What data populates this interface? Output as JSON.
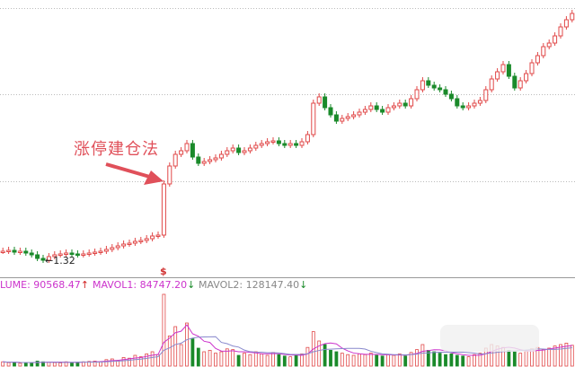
{
  "chart_data": {
    "type": "candlestick",
    "annotation": "涨停建仓法",
    "low_label": "←1.32",
    "signal_marker": "$",
    "grid": "horizontal dotted",
    "colors": {
      "up": "#e04848",
      "down": "#1a8a2a",
      "mavol1": "#cc33cc",
      "mavol2": "#8888cc"
    },
    "closes": [
      1.42,
      1.43,
      1.41,
      1.42,
      1.4,
      1.38,
      1.34,
      1.32,
      1.36,
      1.38,
      1.39,
      1.4,
      1.39,
      1.38,
      1.39,
      1.4,
      1.41,
      1.42,
      1.44,
      1.46,
      1.48,
      1.5,
      1.51,
      1.53,
      1.54,
      1.56,
      1.59,
      1.6,
      2.17,
      2.37,
      2.5,
      2.54,
      2.62,
      2.47,
      2.4,
      2.42,
      2.44,
      2.46,
      2.5,
      2.54,
      2.57,
      2.52,
      2.54,
      2.57,
      2.6,
      2.62,
      2.64,
      2.65,
      2.62,
      2.6,
      2.62,
      2.6,
      2.64,
      2.72,
      3.07,
      3.14,
      3.02,
      2.94,
      2.87,
      2.9,
      2.92,
      2.94,
      2.97,
      3.0,
      3.04,
      3.0,
      2.97,
      3.02,
      3.04,
      3.07,
      3.04,
      3.12,
      3.22,
      3.32,
      3.27,
      3.24,
      3.22,
      3.17,
      3.12,
      3.04,
      3.02,
      3.04,
      3.07,
      3.1,
      3.22,
      3.34,
      3.42,
      3.5,
      3.37,
      3.24,
      3.32,
      3.4,
      3.52,
      3.6,
      3.7,
      3.74,
      3.82,
      3.92,
      4.0,
      4.07
    ],
    "volumes": [
      60000,
      50000,
      55000,
      40000,
      45000,
      50000,
      70000,
      60000,
      55000,
      50000,
      45000,
      60000,
      50000,
      55000,
      60000,
      65000,
      70000,
      60000,
      90000,
      100000,
      80000,
      120000,
      110000,
      150000,
      130000,
      170000,
      200000,
      160000,
      1000000,
      420000,
      550000,
      300000,
      600000,
      380000,
      250000,
      200000,
      220000,
      180000,
      200000,
      240000,
      230000,
      150000,
      180000,
      160000,
      200000,
      170000,
      150000,
      190000,
      160000,
      140000,
      130000,
      150000,
      170000,
      260000,
      480000,
      350000,
      300000,
      220000,
      200000,
      180000,
      160000,
      150000,
      170000,
      160000,
      180000,
      150000,
      140000,
      160000,
      150000,
      170000,
      140000,
      190000,
      230000,
      300000,
      220000,
      200000,
      180000,
      160000,
      170000,
      150000,
      140000,
      130000,
      160000,
      180000,
      250000,
      300000,
      280000,
      260000,
      220000,
      200000,
      180000,
      210000,
      240000,
      260000,
      230000,
      250000,
      280000,
      300000,
      320000,
      290000
    ],
    "indicators": {
      "volume_label": "LUME: 90568.47",
      "volume_arrow": "↑",
      "mavol1_label": "MAVOL1: 84747.20",
      "mavol1_arrow": "↓",
      "mavol2_label": "MAVOL2: 128147.40",
      "mavol2_arrow": "↓"
    }
  }
}
